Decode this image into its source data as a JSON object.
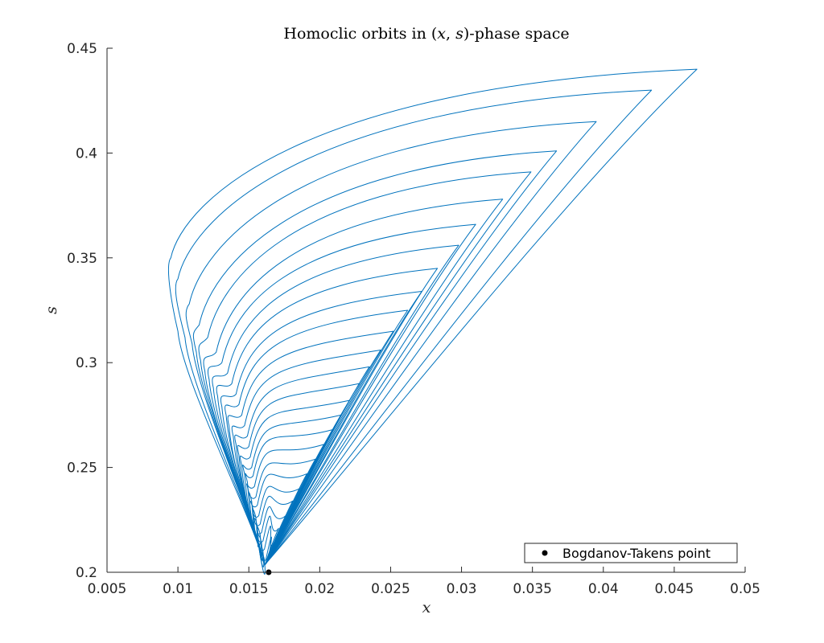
{
  "chart_data": {
    "type": "line",
    "title": "Homoclic orbits in (x, s)-phase space",
    "xlabel": "x",
    "ylabel": "s",
    "xlim": [
      0.005,
      0.05
    ],
    "ylim": [
      0.2,
      0.45
    ],
    "xticks": [
      "0.005",
      "0.01",
      "0.015",
      "0.02",
      "0.025",
      "0.03",
      "0.035",
      "0.04",
      "0.045",
      "0.05"
    ],
    "yticks": [
      "0.2",
      "0.25",
      "0.3",
      "0.35",
      "0.4",
      "0.45"
    ],
    "xtick_values": [
      0.005,
      0.01,
      0.015,
      0.02,
      0.025,
      0.03,
      0.035,
      0.04,
      0.045,
      0.05
    ],
    "ytick_values": [
      0.2,
      0.25,
      0.3,
      0.35,
      0.4,
      0.45
    ],
    "grid": false,
    "legend": {
      "position": "bottom-right",
      "entries": [
        "Bogdanov-Takens point"
      ]
    },
    "series_color": "#0072BD",
    "point_color": "#000000",
    "bt_point": {
      "x": 0.0164,
      "y": 0.2
    },
    "orbit_family": [
      {
        "tip": [
          0.0466,
          0.44
        ],
        "min": [
          0.0095,
          0.35
        ],
        "left": [
          0.01,
          0.315
        ]
      },
      {
        "tip": [
          0.0434,
          0.43
        ],
        "min": [
          0.01,
          0.34
        ],
        "left": [
          0.0105,
          0.312
        ]
      },
      {
        "tip": [
          0.0395,
          0.415
        ],
        "min": [
          0.0108,
          0.328
        ],
        "left": [
          0.011,
          0.309
        ]
      },
      {
        "tip": [
          0.0367,
          0.401
        ],
        "min": [
          0.0115,
          0.318
        ],
        "left": [
          0.0113,
          0.305
        ]
      },
      {
        "tip": [
          0.0349,
          0.391
        ],
        "min": [
          0.0121,
          0.312
        ],
        "left": [
          0.0116,
          0.301
        ]
      },
      {
        "tip": [
          0.0329,
          0.378
        ],
        "min": [
          0.0127,
          0.305
        ],
        "left": [
          0.0119,
          0.296
        ]
      },
      {
        "tip": [
          0.031,
          0.366
        ],
        "min": [
          0.0131,
          0.3
        ],
        "left": [
          0.0122,
          0.292
        ]
      },
      {
        "tip": [
          0.0298,
          0.356
        ],
        "min": [
          0.0135,
          0.295
        ],
        "left": [
          0.0125,
          0.288
        ]
      },
      {
        "tip": [
          0.0283,
          0.345
        ],
        "min": [
          0.0138,
          0.29
        ],
        "left": [
          0.0128,
          0.284
        ]
      },
      {
        "tip": [
          0.0272,
          0.334
        ],
        "min": [
          0.0141,
          0.285
        ],
        "left": [
          0.0131,
          0.279
        ]
      },
      {
        "tip": [
          0.0262,
          0.325
        ],
        "min": [
          0.0143,
          0.28
        ],
        "left": [
          0.0134,
          0.275
        ]
      },
      {
        "tip": [
          0.0252,
          0.315
        ],
        "min": [
          0.0145,
          0.275
        ],
        "left": [
          0.0136,
          0.27
        ]
      },
      {
        "tip": [
          0.0243,
          0.306
        ],
        "min": [
          0.0147,
          0.27
        ],
        "left": [
          0.0139,
          0.265
        ]
      },
      {
        "tip": [
          0.0235,
          0.298
        ],
        "min": [
          0.0149,
          0.265
        ],
        "left": [
          0.0141,
          0.261
        ]
      },
      {
        "tip": [
          0.0228,
          0.29
        ],
        "min": [
          0.015,
          0.26
        ],
        "left": [
          0.0143,
          0.256
        ]
      },
      {
        "tip": [
          0.0221,
          0.282
        ],
        "min": [
          0.0151,
          0.255
        ],
        "left": [
          0.0145,
          0.251
        ]
      },
      {
        "tip": [
          0.0215,
          0.275
        ],
        "min": [
          0.0152,
          0.25
        ],
        "left": [
          0.0147,
          0.247
        ]
      },
      {
        "tip": [
          0.0209,
          0.268
        ],
        "min": [
          0.0153,
          0.246
        ],
        "left": [
          0.0149,
          0.243
        ]
      },
      {
        "tip": [
          0.0203,
          0.261
        ],
        "min": [
          0.0154,
          0.241
        ],
        "left": [
          0.015,
          0.238
        ]
      },
      {
        "tip": [
          0.0197,
          0.254
        ],
        "min": [
          0.0155,
          0.236
        ],
        "left": [
          0.0152,
          0.234
        ]
      },
      {
        "tip": [
          0.0191,
          0.247
        ],
        "min": [
          0.0156,
          0.232
        ],
        "left": [
          0.0153,
          0.23
        ]
      },
      {
        "tip": [
          0.0186,
          0.24
        ],
        "min": [
          0.0157,
          0.227
        ],
        "left": [
          0.0155,
          0.226
        ]
      },
      {
        "tip": [
          0.0181,
          0.234
        ],
        "min": [
          0.0158,
          0.223
        ],
        "left": [
          0.0156,
          0.222
        ]
      },
      {
        "tip": [
          0.0176,
          0.227
        ],
        "min": [
          0.0159,
          0.219
        ],
        "left": [
          0.0158,
          0.218
        ]
      },
      {
        "tip": [
          0.0171,
          0.221
        ],
        "min": [
          0.016,
          0.215
        ],
        "left": [
          0.0159,
          0.214
        ]
      },
      {
        "tip": [
          0.0167,
          0.214
        ],
        "min": [
          0.0161,
          0.211
        ],
        "left": [
          0.016,
          0.21
        ]
      },
      {
        "tip": [
          0.0164,
          0.208
        ],
        "min": [
          0.0162,
          0.206
        ],
        "left": [
          0.0161,
          0.206
        ]
      }
    ]
  }
}
